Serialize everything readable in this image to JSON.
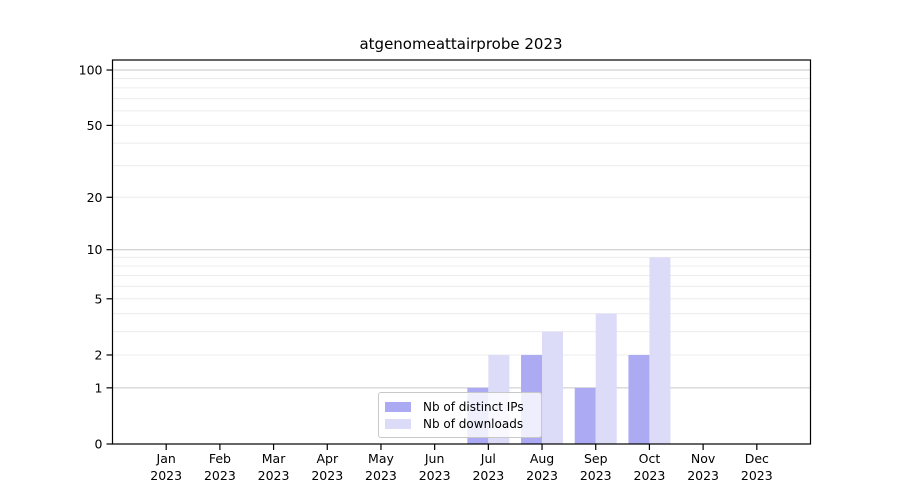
{
  "chart_data": {
    "type": "bar",
    "title": "atgenomeattairprobe 2023",
    "categories": [
      "Jan",
      "Feb",
      "Mar",
      "Apr",
      "May",
      "Jun",
      "Jul",
      "Aug",
      "Sep",
      "Oct",
      "Nov",
      "Dec"
    ],
    "x_tick_second_line": "2023",
    "series": [
      {
        "name": "Nb of distinct IPs",
        "color": "#abaaf2",
        "values": [
          0,
          0,
          0,
          0,
          0,
          0,
          1,
          2,
          1,
          2,
          0,
          0
        ]
      },
      {
        "name": "Nb of downloads",
        "color": "#dcdbf8",
        "values": [
          0,
          0,
          0,
          0,
          0,
          0,
          2,
          3,
          4,
          9,
          0,
          0
        ]
      }
    ],
    "y_axis": {
      "scale": "log10(value+1)",
      "tick_values": [
        100,
        50,
        20,
        10,
        5,
        2,
        1,
        0
      ],
      "tick_labels": [
        "100",
        "50",
        "20",
        "10",
        "5",
        "2",
        "1",
        "0"
      ],
      "minor_grid_values": [
        2,
        3,
        4,
        5,
        6,
        7,
        8,
        9,
        20,
        30,
        40,
        50,
        60,
        70,
        80,
        90
      ],
      "major_grid_values": [
        1,
        10,
        100
      ],
      "ylim": [
        0,
        113.3
      ]
    },
    "xlabel": "",
    "ylabel": "",
    "grid": true,
    "legend_position": "bottom-center-inside",
    "colors": {
      "minor_grid": "#ececec",
      "major_grid": "#c6c6c6",
      "spine": "#000000",
      "tick_text": "#000000",
      "background": "#ffffff"
    }
  }
}
